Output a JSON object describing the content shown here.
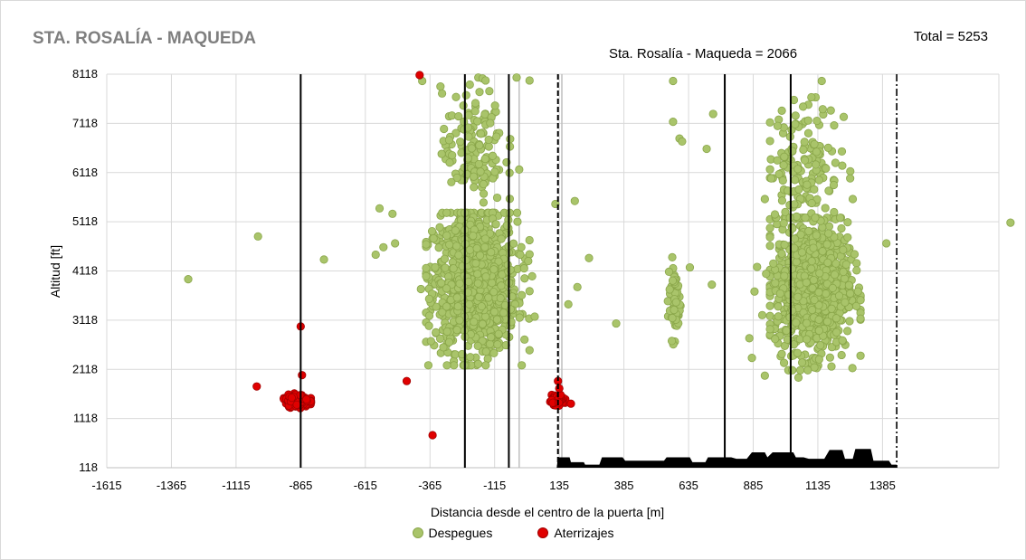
{
  "chart_data": {
    "type": "scatter",
    "title": "STA. ROSALÍA - MAQUEDA",
    "total_label": "Total = 5253",
    "subtitle": "Sta. Rosalía - Maqueda = 2066",
    "xlabel": "Distancia desde el centro de la puerta [m]",
    "ylabel": "Altitud [ft]",
    "xlim": [
      -1615,
      1835
    ],
    "ylim": [
      118,
      8118
    ],
    "x_ticks": [
      -1615,
      -1365,
      -1115,
      -865,
      -615,
      -365,
      -115,
      135,
      385,
      635,
      885,
      1135,
      1385
    ],
    "y_ticks": [
      118,
      1118,
      2118,
      3118,
      4118,
      5118,
      6118,
      7118,
      8118
    ],
    "grid": true,
    "legend_position": "bottom",
    "series": [
      {
        "name": "Despegues",
        "color": "#a9c46a",
        "edge": "#8aa64a",
        "clusters": [
          {
            "cx": -190,
            "cy": 3900,
            "sx": 80,
            "sy": 700,
            "n": 1100,
            "x_range": [
              -380,
              20
            ],
            "y_range": [
              2200,
              5300
            ]
          },
          {
            "cx": 1110,
            "cy": 3800,
            "sx": 70,
            "sy": 650,
            "n": 1100,
            "x_range": [
              950,
              1300
            ],
            "y_range": [
              2100,
              5200
            ]
          },
          {
            "cx": 580,
            "cy": 3550,
            "sx": 12,
            "sy": 400,
            "n": 60,
            "x_range": [
              555,
              610
            ],
            "y_range": [
              2500,
              4700
            ]
          },
          {
            "cx": -200,
            "cy": 6600,
            "sx": 60,
            "sy": 600,
            "n": 140,
            "x_range": [
              -330,
              -20
            ],
            "y_range": [
              5300,
              8050
            ]
          },
          {
            "cx": 1080,
            "cy": 6300,
            "sx": 70,
            "sy": 600,
            "n": 150,
            "x_range": [
              950,
              1280
            ],
            "y_range": [
              5200,
              8000
            ]
          }
        ],
        "points": [
          [
            -1300,
            3950
          ],
          [
            -1030,
            4820
          ],
          [
            -775,
            4350
          ],
          [
            -560,
            5390
          ],
          [
            -510,
            5280
          ],
          [
            -545,
            4600
          ],
          [
            -575,
            4450
          ],
          [
            -500,
            4680
          ],
          [
            -395,
            7980
          ],
          [
            -400,
            3750
          ],
          [
            -55,
            6800
          ],
          [
            -20,
            6180
          ],
          [
            30,
            4010
          ],
          [
            15,
            4320
          ],
          [
            40,
            3190
          ],
          [
            120,
            5480
          ],
          [
            195,
            5540
          ],
          [
            205,
            3790
          ],
          [
            170,
            3440
          ],
          [
            250,
            4380
          ],
          [
            355,
            3050
          ],
          [
            575,
            7150
          ],
          [
            600,
            6810
          ],
          [
            610,
            6750
          ],
          [
            705,
            6600
          ],
          [
            730,
            7310
          ],
          [
            725,
            3840
          ],
          [
            640,
            4190
          ],
          [
            575,
            7980
          ],
          [
            1150,
            7980
          ],
          [
            1185,
            7380
          ],
          [
            1235,
            7250
          ],
          [
            1110,
            7650
          ],
          [
            1400,
            4680
          ],
          [
            1880,
            5100
          ],
          [
            1260,
            6000
          ],
          [
            1285,
            4130
          ],
          [
            1290,
            3700
          ],
          [
            1250,
            4800
          ],
          [
            1270,
            5580
          ],
          [
            920,
            3220
          ],
          [
            880,
            2350
          ],
          [
            870,
            2750
          ],
          [
            890,
            3700
          ],
          [
            900,
            4200
          ],
          [
            930,
            5580
          ],
          [
            935,
            4060
          ],
          [
            1060,
            1950
          ],
          [
            1140,
            2320
          ],
          [
            930,
            1990
          ],
          [
            20,
            7990
          ],
          [
            -150,
            7990
          ],
          [
            -30,
            8050
          ]
        ]
      },
      {
        "name": "Aterrizajes",
        "color": "#e00000",
        "edge": "#a00000",
        "clusters": [
          {
            "cx": -880,
            "cy": 1480,
            "sx": 22,
            "sy": 60,
            "n": 160,
            "x_range": [
              -930,
              -825
            ],
            "y_range": [
              1330,
              1700
            ]
          },
          {
            "cx": 130,
            "cy": 1500,
            "sx": 12,
            "sy": 45,
            "n": 90,
            "x_range": [
              100,
              170
            ],
            "y_range": [
              1380,
              1600
            ]
          }
        ],
        "points": [
          [
            -865,
            2990
          ],
          [
            -860,
            2000
          ],
          [
            -1035,
            1770
          ],
          [
            -455,
            1880
          ],
          [
            -405,
            8100
          ],
          [
            -355,
            780
          ],
          [
            130,
            1880
          ],
          [
            135,
            1730
          ],
          [
            180,
            1420
          ],
          [
            -900,
            1540
          ],
          [
            -880,
            1400
          ]
        ]
      }
    ],
    "vertical_lines": [
      {
        "x": -865,
        "style": "solid"
      },
      {
        "x": -230,
        "style": "solid"
      },
      {
        "x": -60,
        "style": "solid"
      },
      {
        "x": 130,
        "style": "dashed"
      },
      {
        "x": 775,
        "style": "solid"
      },
      {
        "x": 1030,
        "style": "solid"
      },
      {
        "x": 1440,
        "style": "dashdot"
      }
    ],
    "grey_lines": [
      {
        "x": -20
      },
      {
        "x": 145
      }
    ],
    "terrain": {
      "color": "#000000",
      "points": [
        [
          125,
          118
        ],
        [
          130,
          330
        ],
        [
          175,
          330
        ],
        [
          180,
          230
        ],
        [
          230,
          230
        ],
        [
          235,
          180
        ],
        [
          290,
          180
        ],
        [
          300,
          330
        ],
        [
          380,
          330
        ],
        [
          390,
          260
        ],
        [
          540,
          260
        ],
        [
          550,
          330
        ],
        [
          640,
          330
        ],
        [
          650,
          230
        ],
        [
          700,
          230
        ],
        [
          710,
          330
        ],
        [
          800,
          330
        ],
        [
          820,
          300
        ],
        [
          860,
          300
        ],
        [
          880,
          430
        ],
        [
          930,
          430
        ],
        [
          940,
          330
        ],
        [
          960,
          430
        ],
        [
          1040,
          430
        ],
        [
          1050,
          330
        ],
        [
          1080,
          330
        ],
        [
          1100,
          300
        ],
        [
          1160,
          300
        ],
        [
          1180,
          480
        ],
        [
          1230,
          480
        ],
        [
          1240,
          300
        ],
        [
          1270,
          300
        ],
        [
          1280,
          500
        ],
        [
          1340,
          500
        ],
        [
          1350,
          260
        ],
        [
          1410,
          260
        ],
        [
          1420,
          180
        ],
        [
          1440,
          180
        ],
        [
          1440,
          118
        ]
      ]
    }
  },
  "legend": {
    "takeoffs_label": "Despegues",
    "landings_label": "Aterrizajes"
  }
}
